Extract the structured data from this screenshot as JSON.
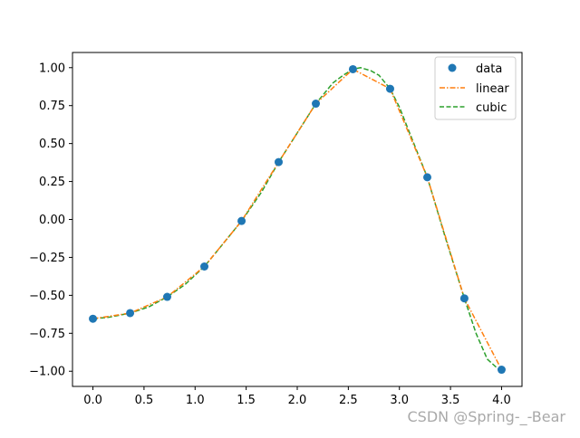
{
  "chart_data": {
    "type": "line",
    "title": "",
    "xlabel": "",
    "ylabel": "",
    "xlim": [
      -0.2,
      4.2
    ],
    "ylim": [
      -1.1,
      1.1
    ],
    "xticks": [
      0.0,
      0.5,
      1.0,
      1.5,
      2.0,
      2.5,
      3.0,
      3.5,
      4.0
    ],
    "xtick_labels": [
      "0.0",
      "0.5",
      "1.0",
      "1.5",
      "2.0",
      "2.5",
      "3.0",
      "3.5",
      "4.0"
    ],
    "yticks": [
      1.0,
      0.75,
      0.5,
      0.25,
      0.0,
      -0.25,
      -0.5,
      -0.75,
      -1.0
    ],
    "ytick_labels": [
      "1.00",
      "0.75",
      "0.50",
      "0.25",
      "0.00",
      "−0.25",
      "−0.50",
      "−0.75",
      "−1.00"
    ],
    "grid": false,
    "legend_position": "top-right",
    "series": [
      {
        "name": "data",
        "kind": "scatter",
        "color": "#1f77b4",
        "x": [
          0.0,
          0.364,
          0.727,
          1.091,
          1.455,
          1.818,
          2.182,
          2.545,
          2.909,
          3.273,
          3.636,
          4.0
        ],
        "y": [
          -0.654,
          -0.617,
          -0.51,
          -0.31,
          -0.01,
          0.378,
          0.763,
          0.99,
          0.861,
          0.278,
          -0.52,
          -0.99
        ]
      },
      {
        "name": "linear",
        "kind": "line",
        "style": "dashdot",
        "color": "#ff7f0e",
        "x": [
          0.0,
          0.364,
          0.727,
          1.091,
          1.455,
          1.818,
          2.182,
          2.545,
          2.909,
          3.273,
          3.636,
          4.0
        ],
        "y": [
          -0.654,
          -0.617,
          -0.51,
          -0.31,
          -0.01,
          0.378,
          0.763,
          0.99,
          0.861,
          0.278,
          -0.52,
          -0.99
        ]
      },
      {
        "name": "cubic",
        "kind": "line",
        "style": "dashed",
        "color": "#2ca02c",
        "x": [
          0.0,
          0.15,
          0.364,
          0.55,
          0.727,
          0.9,
          1.091,
          1.25,
          1.455,
          1.65,
          1.818,
          2.0,
          2.182,
          2.35,
          2.45,
          2.545,
          2.62,
          2.72,
          2.8,
          2.909,
          3.0,
          3.1,
          3.273,
          3.45,
          3.636,
          3.75,
          3.86,
          3.95,
          4.0
        ],
        "y": [
          -0.654,
          -0.645,
          -0.617,
          -0.575,
          -0.51,
          -0.43,
          -0.31,
          -0.18,
          -0.01,
          0.18,
          0.378,
          0.57,
          0.763,
          0.9,
          0.95,
          0.99,
          1.0,
          0.98,
          0.95,
          0.861,
          0.74,
          0.57,
          0.278,
          -0.12,
          -0.52,
          -0.75,
          -0.92,
          -0.975,
          -0.99
        ]
      }
    ]
  },
  "watermark": {
    "text": "CSDN @Spring-_-Bear"
  }
}
